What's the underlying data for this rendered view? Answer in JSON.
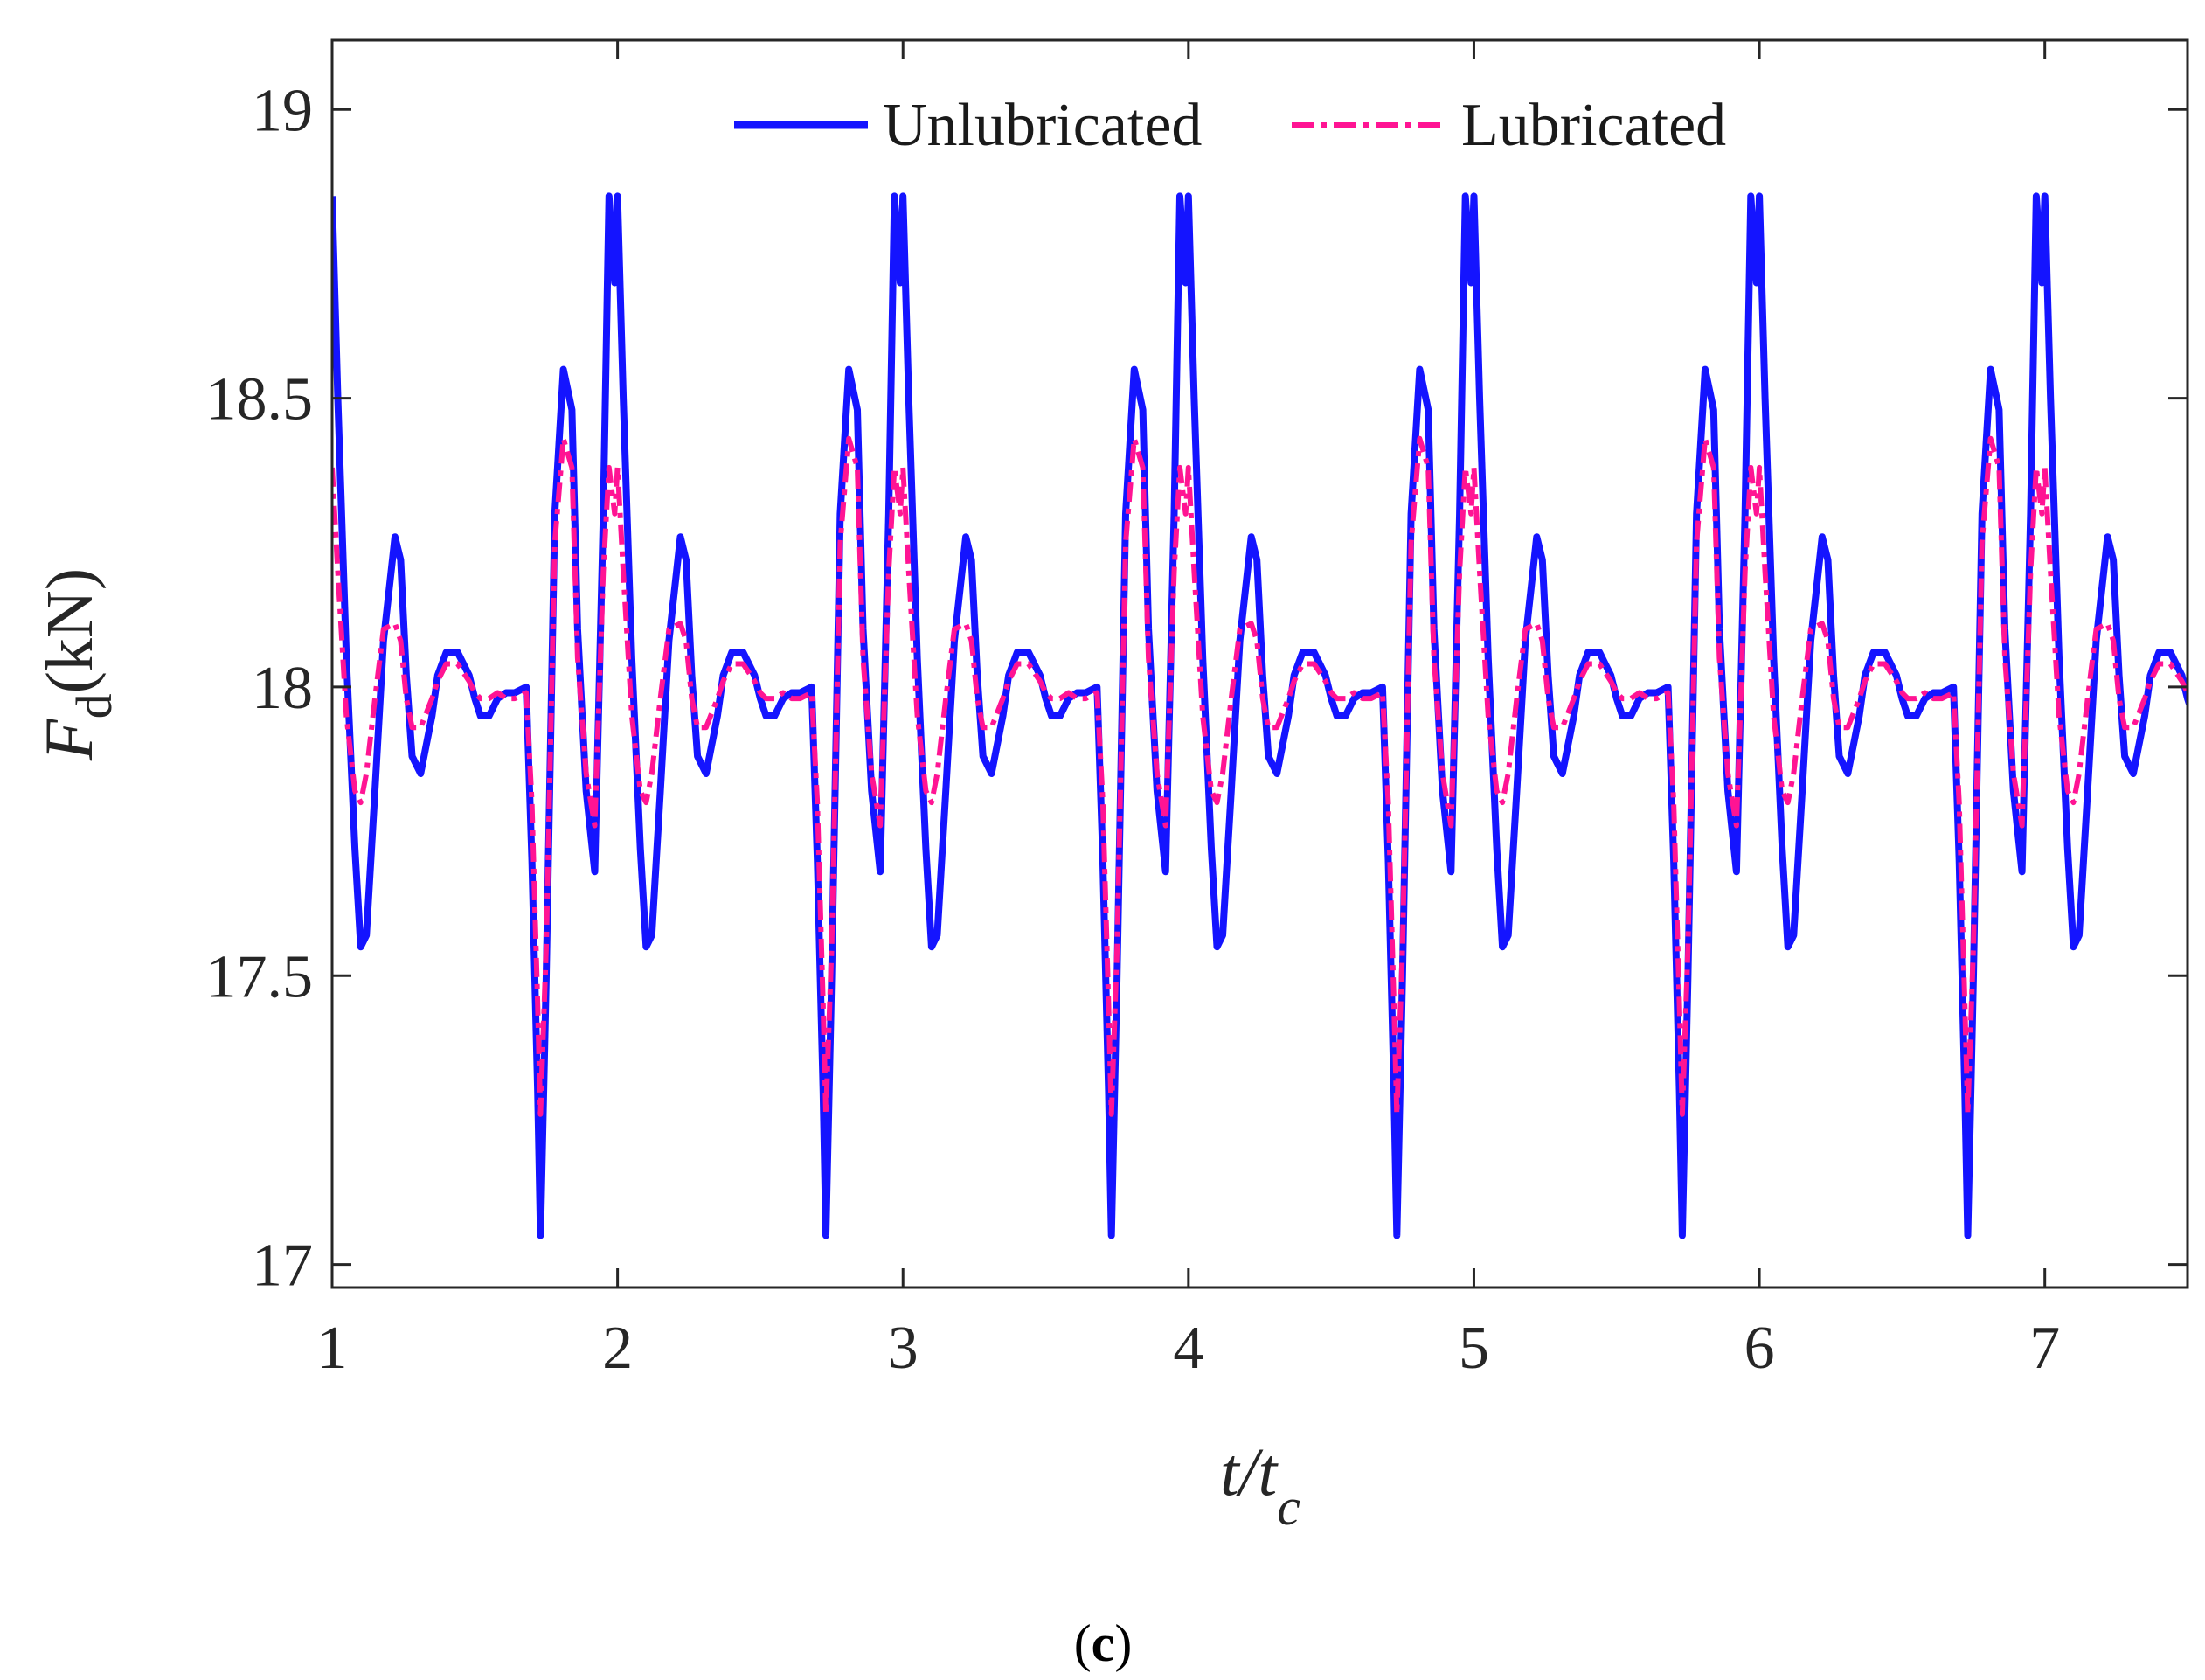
{
  "chart_data": {
    "type": "line",
    "title": "",
    "xlabel_main": "t/t",
    "xlabel_sub": "c",
    "ylabel_main": "F",
    "ylabel_sub": "d",
    "ylabel_unit": "(kN)",
    "caption_open": "(",
    "caption_letter": "c",
    "caption_close": ")",
    "xlim": [
      1,
      7.5
    ],
    "ylim": [
      16.96,
      19.12
    ],
    "xticks": [
      1,
      2,
      3,
      4,
      5,
      6,
      7
    ],
    "yticks": [
      17,
      17.5,
      18,
      18.5,
      19
    ],
    "ytick_labels": [
      "17",
      "17.5",
      "18",
      "18.5",
      "19"
    ],
    "grid": false,
    "legend_placement": "top-center",
    "period": 1,
    "series": [
      {
        "name": "Unlubricated",
        "color": "#1414ff",
        "style": "solid",
        "cycle_x": [
          0.0,
          0.02,
          0.05,
          0.08,
          0.1,
          0.12,
          0.15,
          0.18,
          0.22,
          0.24,
          0.26,
          0.28,
          0.31,
          0.35,
          0.37,
          0.4,
          0.44,
          0.48,
          0.5,
          0.52,
          0.55,
          0.58,
          0.61,
          0.64,
          0.68,
          0.7,
          0.72,
          0.73,
          0.75,
          0.78,
          0.81,
          0.84,
          0.86,
          0.89,
          0.92,
          0.95,
          0.97,
          0.99,
          1.0
        ],
        "cycle_y": [
          18.85,
          18.5,
          18.05,
          17.72,
          17.55,
          17.57,
          17.82,
          18.08,
          18.26,
          18.22,
          18.02,
          17.88,
          17.85,
          17.95,
          18.02,
          18.06,
          18.06,
          18.02,
          17.98,
          17.95,
          17.95,
          17.98,
          17.99,
          17.99,
          18.0,
          17.7,
          17.3,
          17.05,
          17.5,
          18.3,
          18.55,
          18.48,
          18.1,
          17.82,
          17.68,
          18.3,
          18.85,
          18.7,
          18.85
        ]
      },
      {
        "name": "Lubricated",
        "color": "#ff1493",
        "style": "dashdot",
        "cycle_x": [
          0.0,
          0.02,
          0.05,
          0.08,
          0.1,
          0.12,
          0.15,
          0.18,
          0.22,
          0.24,
          0.26,
          0.28,
          0.31,
          0.35,
          0.37,
          0.4,
          0.44,
          0.48,
          0.5,
          0.52,
          0.55,
          0.58,
          0.61,
          0.64,
          0.68,
          0.7,
          0.72,
          0.73,
          0.75,
          0.78,
          0.81,
          0.84,
          0.86,
          0.89,
          0.92,
          0.95,
          0.97,
          0.99,
          1.0
        ],
        "cycle_y": [
          18.38,
          18.2,
          17.95,
          17.82,
          17.8,
          17.85,
          17.98,
          18.1,
          18.11,
          18.08,
          17.98,
          17.93,
          17.93,
          17.98,
          18.01,
          18.04,
          18.04,
          18.01,
          17.99,
          17.98,
          17.98,
          17.99,
          17.98,
          17.98,
          17.99,
          17.8,
          17.45,
          17.26,
          17.55,
          18.25,
          18.43,
          18.38,
          18.05,
          17.85,
          17.76,
          18.2,
          18.38,
          18.3,
          18.38
        ]
      }
    ]
  }
}
